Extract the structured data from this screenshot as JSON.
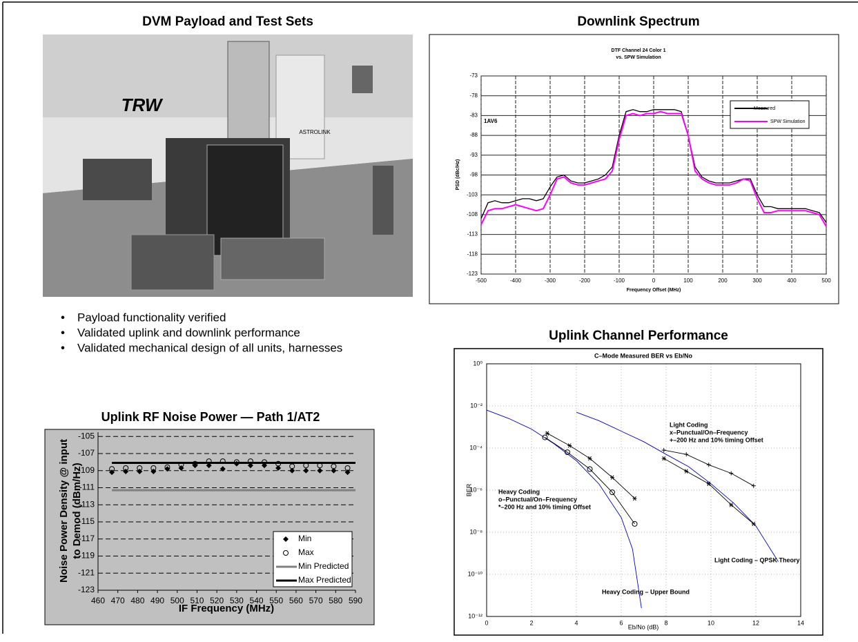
{
  "photo_panel": {
    "title": "DVM Payload and Test Sets",
    "texts": [
      "TRW",
      "ASTROLINK"
    ]
  },
  "bullets": [
    "Payload functionality verified",
    "Validated uplink and downlink performance",
    "Validated mechanical design of all units, harnesses"
  ],
  "chart_data": [
    {
      "type": "line",
      "title": "Downlink Spectrum",
      "plot_title": [
        "DTF Channel 24 Color 1",
        "vs. SPW Simulation"
      ],
      "x_label": "Frequency Offset (MHz)",
      "y_label": "PSD (dBc/Hz)",
      "annotation": "1AV6",
      "xlim": [
        -500,
        500
      ],
      "xticks": [
        -500,
        -400,
        -300,
        -200,
        -100,
        0,
        100,
        200,
        300,
        400,
        500
      ],
      "ylim": [
        -123,
        -73
      ],
      "yticks": [
        -73,
        -78,
        -83,
        -88,
        -93,
        -98,
        -103,
        -108,
        -113,
        -118,
        -123
      ],
      "grid": true,
      "legend": "upper right",
      "x": [
        -500,
        -480,
        -460,
        -440,
        -420,
        -400,
        -380,
        -360,
        -340,
        -320,
        -300,
        -280,
        -260,
        -240,
        -220,
        -200,
        -180,
        -160,
        -140,
        -120,
        -100,
        -80,
        -60,
        -40,
        -20,
        0,
        20,
        40,
        60,
        80,
        100,
        120,
        140,
        160,
        180,
        200,
        220,
        240,
        260,
        280,
        300,
        320,
        340,
        360,
        380,
        400,
        420,
        440,
        460,
        480,
        500
      ],
      "series": [
        {
          "name": "Measured",
          "color": "#000000",
          "values": [
            -109,
            -105,
            -104.5,
            -105,
            -105,
            -104.5,
            -104,
            -104,
            -104.5,
            -104,
            -101,
            -98.5,
            -98,
            -99.5,
            -100,
            -100,
            -99.5,
            -99,
            -98,
            -96,
            -88,
            -82,
            -81.5,
            -82,
            -82,
            -81.5,
            -81.5,
            -81.5,
            -81.5,
            -82,
            -88,
            -96,
            -98.5,
            -99.5,
            -100,
            -100,
            -100,
            -99.5,
            -99,
            -99,
            -103,
            -106,
            -106,
            -106.5,
            -106.5,
            -106.5,
            -106.5,
            -106.5,
            -107,
            -107.5,
            -110
          ]
        },
        {
          "name": "SPW Simulation",
          "color": "#ff00ff",
          "values": [
            -110.5,
            -107,
            -106.5,
            -106.5,
            -106,
            -105.5,
            -106,
            -106.5,
            -107,
            -106.5,
            -103,
            -99,
            -98.5,
            -100,
            -100.5,
            -100.5,
            -100,
            -99.5,
            -99,
            -97,
            -89,
            -83,
            -82.5,
            -83,
            -82.5,
            -82.5,
            -82,
            -82.5,
            -82.5,
            -82.5,
            -88,
            -97,
            -99,
            -100,
            -100.5,
            -100.5,
            -100.5,
            -100,
            -99,
            -99.5,
            -104,
            -107.5,
            -107.5,
            -107,
            -107,
            -107,
            -107,
            -107,
            -107.5,
            -108,
            -111
          ]
        }
      ]
    },
    {
      "type": "scatter",
      "title": "Uplink RF Noise Power — Path 1/AT2",
      "x_label": "IF Frequency (MHz)",
      "y_label": [
        "Noise Power Density @ input",
        "to Demod (dBm/Hz)"
      ],
      "xlim": [
        460,
        590
      ],
      "xticks": [
        460,
        470,
        480,
        490,
        500,
        510,
        520,
        530,
        540,
        550,
        560,
        570,
        580,
        590
      ],
      "ylim": [
        -123,
        -104.5
      ],
      "yticks": [
        -105,
        -107,
        -109,
        -111,
        -113,
        -115,
        -117,
        -119,
        -121,
        -123
      ],
      "grid": true,
      "legend": "lower right",
      "x": [
        467,
        474,
        481,
        488,
        495,
        502,
        509,
        516,
        523,
        530,
        537,
        544,
        551,
        558,
        565,
        572,
        579,
        586
      ],
      "series": [
        {
          "name": "Min",
          "color": "#000000",
          "marker": "diamond",
          "values": [
            -109.2,
            -109.1,
            -109.1,
            -109.1,
            -108.8,
            -108.7,
            -108.4,
            -108.4,
            -108.8,
            -108.2,
            -108.4,
            -108.4,
            -108.7,
            -109,
            -109,
            -109,
            -109,
            -109.2
          ]
        },
        {
          "name": "Max",
          "color": "#000000",
          "marker": "circle",
          "values": [
            -108.8,
            -108.7,
            -108.7,
            -108.7,
            -108.6,
            -108.3,
            -108.2,
            -107.9,
            -107.9,
            -108,
            -107.9,
            -108,
            -108.2,
            -108.5,
            -108.4,
            -108.4,
            -108.5,
            -108.7
          ]
        },
        {
          "name": "Min Predicted",
          "color": "#808080",
          "value": -111.3
        },
        {
          "name": "Max Predicted",
          "color": "#000000",
          "value": -108.1
        }
      ]
    },
    {
      "type": "line",
      "title": "Uplink Channel Performance",
      "plot_title": "C–Mode Measured BER vs Eb/No",
      "x_label": "Eb/No (dB)",
      "y_label": "BER",
      "log_y": true,
      "grid": true,
      "xlim": [
        0,
        14
      ],
      "xticks": [
        0,
        2,
        4,
        6,
        8,
        10,
        12,
        14
      ],
      "ylim": [
        1e-12,
        1
      ],
      "yticks": [
        {
          "value": 1,
          "label": "10⁰"
        },
        {
          "value": 0.01,
          "label": "10⁻²"
        },
        {
          "value": 0.0001,
          "label": "10⁻⁴"
        },
        {
          "value": 1e-06,
          "label": "10⁻⁶"
        },
        {
          "value": 1e-08,
          "label": "10⁻⁸"
        },
        {
          "value": 1e-10,
          "label": "10⁻¹⁰"
        },
        {
          "value": 1e-12,
          "label": "10⁻¹²"
        }
      ],
      "series": [
        {
          "color": "#0000cc",
          "marker": null,
          "x": [
            0,
            1,
            2,
            3,
            4,
            5,
            6,
            6.5,
            6.9
          ],
          "values": [
            0.0063,
            0.0025,
            0.00079,
            0.00016,
            2.5e-05,
            2e-06,
            5e-08,
            1.6e-09,
            2.5e-12
          ]
        },
        {
          "color": "#0000cc",
          "marker": null,
          "x": [
            4,
            5,
            6,
            7,
            8,
            9,
            10,
            11,
            12,
            13
          ],
          "values": [
            0.005,
            0.002,
            0.00063,
            0.0002,
            5e-05,
            1.3e-05,
            2e-06,
            2.5e-07,
            2e-08,
            4e-10
          ]
        },
        {
          "color": "#000000",
          "marker": "star",
          "x": [
            2.7,
            3.7,
            4.6,
            5.6,
            6.6
          ],
          "values": [
            0.0005,
            0.00013,
            3.2e-05,
            4e-06,
            4e-07
          ]
        },
        {
          "color": "#000000",
          "marker": "circle",
          "x": [
            2.6,
            3.6,
            4.6,
            5.6,
            6.6
          ],
          "values": [
            0.00032,
            6.3e-05,
            1e-05,
            7.9e-07,
            2.5e-08
          ]
        },
        {
          "color": "#000000",
          "marker": "plus",
          "x": [
            7.9,
            8.9,
            9.9,
            10.9,
            11.9
          ],
          "values": [
            7.9e-05,
            5e-05,
            1.6e-05,
            6.3e-06,
            1.6e-06
          ]
        },
        {
          "color": "#000000",
          "marker": "star",
          "x": [
            7.9,
            8.9,
            9.9,
            10.9,
            11.9
          ],
          "values": [
            3.2e-05,
            7.9e-06,
            2e-06,
            2e-07,
            2.5e-08
          ]
        }
      ],
      "annotations": [
        [
          "Light Coding",
          "x–Punctual/On–Frequency",
          "+–200 Hz and 10% timing Offset"
        ],
        [
          "Heavy Coding",
          "o–Punctual/On–Frequency",
          "*–200 Hz and 10% timing Offset"
        ],
        [
          "Light Coding – QPSK Theory"
        ],
        [
          "Heavy Coding – Upper Bound"
        ]
      ]
    }
  ]
}
